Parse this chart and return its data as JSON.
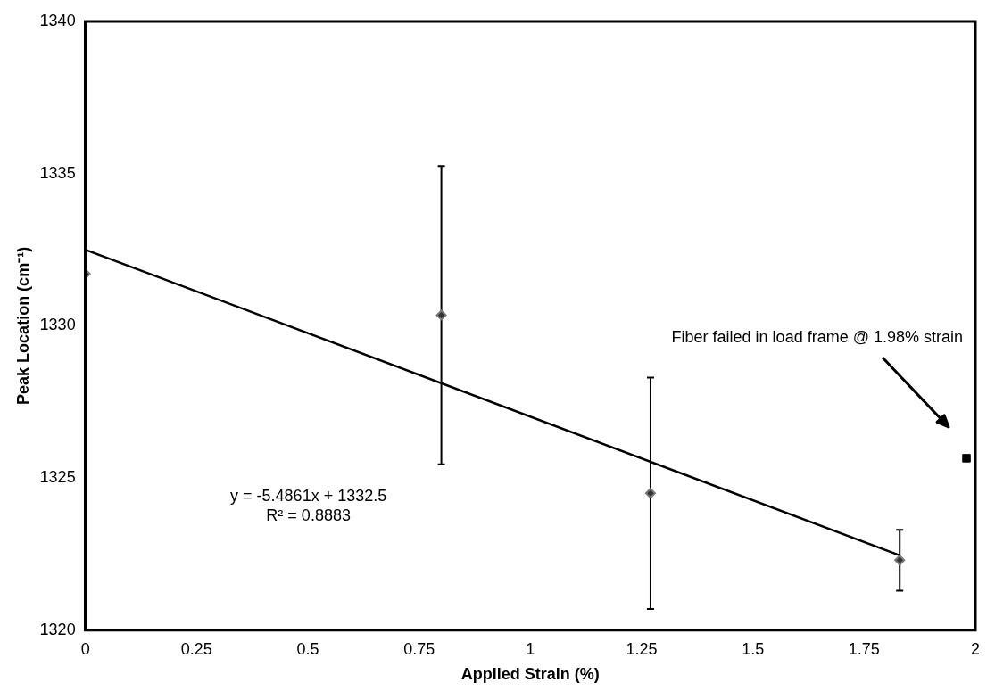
{
  "chart_data": {
    "type": "scatter",
    "xlabel": "Applied Strain (%)",
    "ylabel": "Peak Location (cm⁻¹)",
    "xlim": [
      0,
      2
    ],
    "xticks": [
      0,
      0.25,
      0.5,
      0.75,
      1,
      1.25,
      1.5,
      1.75,
      2
    ],
    "ylim": [
      1320,
      1340
    ],
    "yticks": [
      1320,
      1325,
      1330,
      1335,
      1340
    ],
    "grid": false,
    "legend": false,
    "series": [
      {
        "type": "scatter",
        "color": "#333333",
        "marker": "diamond",
        "x": [
          0,
          0.8,
          1.27,
          1.83
        ],
        "values": [
          1331.7,
          1330.35,
          1324.5,
          1322.3
        ],
        "errors": [
          null,
          4.9,
          3.8,
          1.0
        ]
      },
      {
        "type": "scatter",
        "color": "#000000",
        "marker": "square",
        "x": [
          1.98
        ],
        "values": [
          1325.65
        ]
      },
      {
        "type": "line",
        "color": "#000000",
        "marker": "none",
        "line_style": "solid",
        "x": [
          0,
          1.83
        ],
        "values": [
          1332.5,
          1322.46
        ]
      }
    ],
    "annotations": [
      "Fiber failed in load frame @ 1.98% strain",
      "y = -5.4861x + 1332.5",
      "R² = 0.8883"
    ]
  }
}
